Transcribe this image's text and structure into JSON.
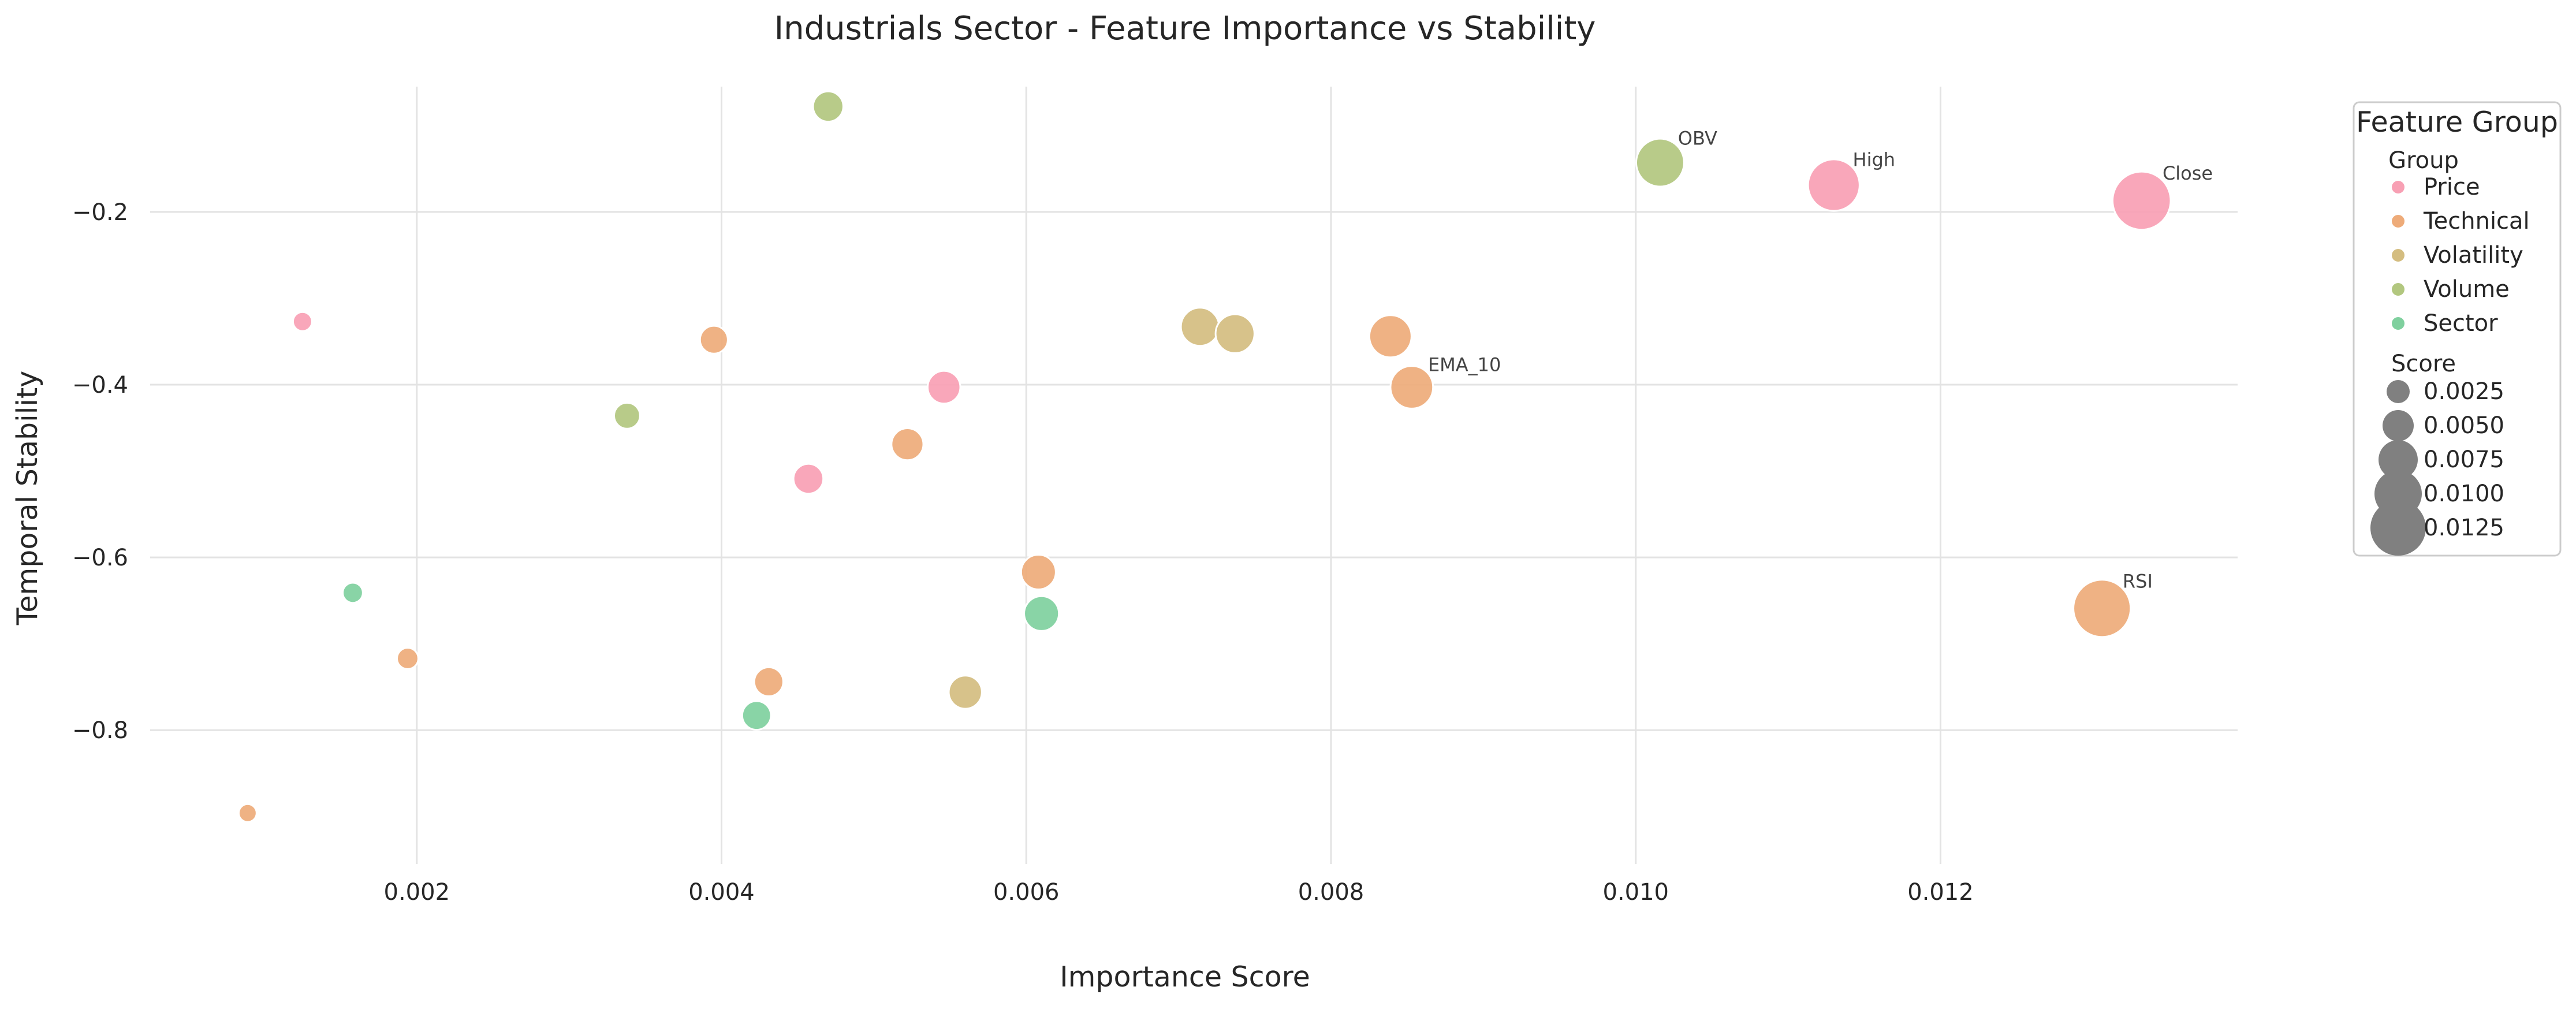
{
  "chart_data": {
    "type": "scatter",
    "title": "Industrials Sector - Feature Importance vs Stability",
    "xlabel": "Importance Score",
    "ylabel": "Temporal Stability",
    "xlim": [
      0.00025,
      0.01395
    ],
    "ylim": [
      -0.955,
      -0.055
    ],
    "xticks": [
      0.002,
      0.004,
      0.006,
      0.008,
      0.01,
      0.012
    ],
    "xtick_labels": [
      "0.002",
      "0.004",
      "0.006",
      "0.008",
      "0.010",
      "0.012"
    ],
    "yticks": [
      -0.2,
      -0.4,
      -0.6,
      -0.8
    ],
    "ytick_labels": [
      "−0.2",
      "−0.4",
      "−0.6",
      "−0.8"
    ],
    "grid": true,
    "legend": {
      "title": "Feature Group",
      "placement": "outside-right-top",
      "hue_title": "Group",
      "size_title": "Score",
      "size_entries": [
        {
          "label": "0.0025",
          "value": 0.0025
        },
        {
          "label": "0.0050",
          "value": 0.005
        },
        {
          "label": "0.0075",
          "value": 0.0075
        },
        {
          "label": "0.0100",
          "value": 0.01
        },
        {
          "label": "0.0125",
          "value": 0.0125
        }
      ]
    },
    "series": [
      {
        "name": "Price",
        "color": "#f8a0b4",
        "points": [
          {
            "x": 0.00125,
            "y": -0.327
          },
          {
            "x": 0.00457,
            "y": -0.509
          },
          {
            "x": 0.00546,
            "y": -0.403
          },
          {
            "x": 0.0113,
            "y": -0.169,
            "label": "High"
          },
          {
            "x": 0.01332,
            "y": -0.187,
            "label": "Close"
          }
        ]
      },
      {
        "name": "Technical",
        "color": "#eeab79",
        "points": [
          {
            "x": 0.00089,
            "y": -0.896
          },
          {
            "x": 0.00194,
            "y": -0.717
          },
          {
            "x": 0.00395,
            "y": -0.348
          },
          {
            "x": 0.00431,
            "y": -0.744
          },
          {
            "x": 0.00522,
            "y": -0.469
          },
          {
            "x": 0.00608,
            "y": -0.617
          },
          {
            "x": 0.00839,
            "y": -0.344
          },
          {
            "x": 0.00853,
            "y": -0.403,
            "label": "EMA_10"
          },
          {
            "x": 0.01306,
            "y": -0.659,
            "label": "RSI"
          }
        ]
      },
      {
        "name": "Volatility",
        "color": "#d4bd80",
        "points": [
          {
            "x": 0.0056,
            "y": -0.756
          },
          {
            "x": 0.00714,
            "y": -0.333
          },
          {
            "x": 0.00737,
            "y": -0.341
          }
        ]
      },
      {
        "name": "Volume",
        "color": "#b2c77f",
        "points": [
          {
            "x": 0.00338,
            "y": -0.436
          },
          {
            "x": 0.0047,
            "y": -0.078
          },
          {
            "x": 0.01016,
            "y": -0.143,
            "label": "OBV"
          }
        ]
      },
      {
        "name": "Sector",
        "color": "#7fd09e",
        "points": [
          {
            "x": 0.00158,
            "y": -0.641
          },
          {
            "x": 0.00423,
            "y": -0.783
          },
          {
            "x": 0.0061,
            "y": -0.665
          }
        ]
      }
    ]
  }
}
